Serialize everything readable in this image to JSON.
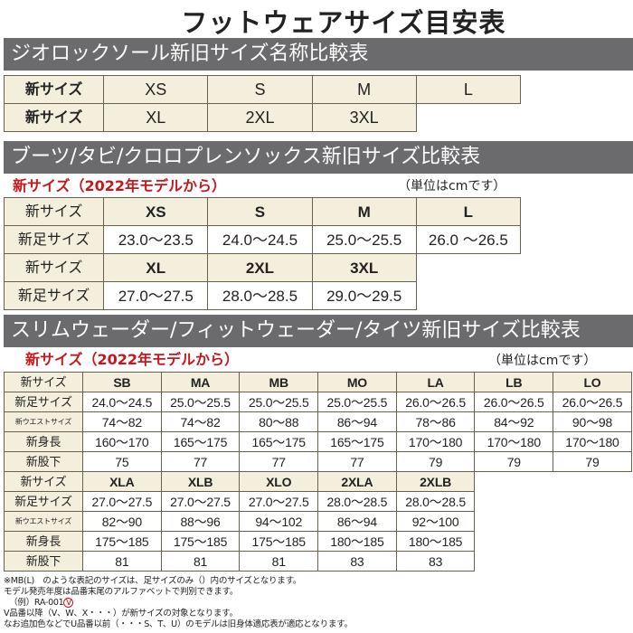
{
  "title": "フットウェアサイズ目安表",
  "section1": {
    "heading": "ジオロックソール新旧サイズ名称比較表",
    "rows": [
      [
        "新サイズ",
        "XS",
        "S",
        "M",
        "L"
      ],
      [
        "新サイズ",
        "XL",
        "2XL",
        "3XL"
      ]
    ]
  },
  "section2": {
    "heading": "ブーツ/タビ/クロロプレンソックス新旧サイズ比較表",
    "note": "新サイズ（2022年モデルから）",
    "unit": "（単位はcmです）",
    "rows": [
      [
        "新サイズ",
        "XS",
        "S",
        "M",
        "L"
      ],
      [
        "新足サイズ",
        "23.0～23.5",
        "24.0～24.5",
        "25.0～25.5",
        "26.0 ～26.5"
      ],
      [
        "新サイズ",
        "XL",
        "2XL",
        "3XL"
      ],
      [
        "新足サイズ",
        "27.0～27.5",
        "28.0～28.5",
        "29.0～29.5"
      ]
    ]
  },
  "section3": {
    "heading": "スリムウェーダー/フィットウェーダー/タイツ新旧サイズ比較表",
    "note": "新サイズ（2022年モデルから）",
    "unit": "（単位はcmです）",
    "rows": [
      [
        "新サイズ",
        "SB",
        "MA",
        "MB",
        "MO",
        "LA",
        "LB",
        "LO"
      ],
      [
        "新足サイズ",
        "24.0～24.5",
        "25.0～25.5",
        "25.0～25.5",
        "25.0～25.5",
        "26.0～26.5",
        "26.0～26.5",
        "26.0～26.5"
      ],
      [
        "新ウエストサイズ",
        "74～82",
        "74～82",
        "80～88",
        "86～94",
        "78～86",
        "84～92",
        "90～98"
      ],
      [
        "新身長",
        "160～170",
        "165～175",
        "165～175",
        "165～175",
        "170～180",
        "170～180",
        "170～180"
      ],
      [
        "新股下",
        "75",
        "77",
        "77",
        "77",
        "79",
        "79",
        "79"
      ],
      [
        "新サイズ",
        "XLA",
        "XLB",
        "XLO",
        "2XLA",
        "2XLB"
      ],
      [
        "新足サイズ",
        "27.0～27.5",
        "27.0～27.5",
        "27.0～27.5",
        "28.0～28.5",
        "28.0～28.5"
      ],
      [
        "新ウエストサイズ",
        "82～90",
        "88～96",
        "94～102",
        "86～94",
        "92～100"
      ],
      [
        "新身長",
        "175～185",
        "175～185",
        "175～185",
        "180～185",
        "180～185"
      ],
      [
        "新股下",
        "81",
        "81",
        "81",
        "83",
        "83"
      ]
    ]
  },
  "notes": {
    "line1": "※MB(L)　のような表記のサイズは、足サイズのみ（）内のサイズとなります。",
    "line2": "モデル発売年度は品番末尾のアルファベットで判別できます。",
    "line3_prefix": "（例）RA-001",
    "line3_circled": "V",
    "line4": "V品番以降（V、W、X・・・）が新サイズの対象となります。",
    "line5": "なお追加色などでU品番以前（・・・S、T、U）のモデルは旧身体適応表が適応となります。"
  },
  "colors": {
    "header_bar": "#6b6b6d",
    "cell_beige": "#f4efdc",
    "accent_red": "#c8161d"
  }
}
